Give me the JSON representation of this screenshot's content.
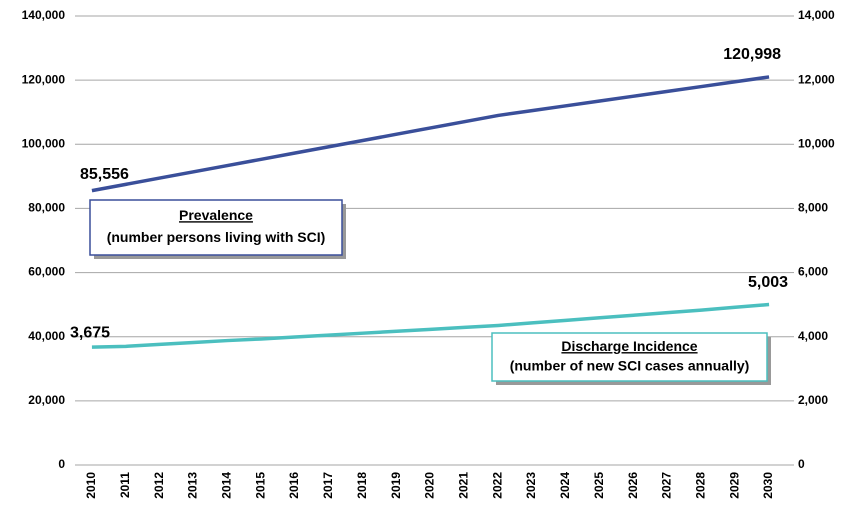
{
  "chart_data": {
    "type": "line",
    "categories": [
      "2010",
      "2011",
      "2012",
      "2013",
      "2014",
      "2015",
      "2016",
      "2017",
      "2018",
      "2019",
      "2020",
      "2021",
      "2022",
      "2023",
      "2024",
      "2025",
      "2026",
      "2027",
      "2028",
      "2029",
      "2030"
    ],
    "series": [
      {
        "name": "Prevalence",
        "color": "#3a4f9a",
        "axis": "y",
        "values": [
          85556,
          87510,
          89460,
          91420,
          93370,
          95320,
          97280,
          99230,
          101190,
          103140,
          105100,
          107050,
          109000,
          110500,
          112000,
          113500,
          115000,
          116500,
          118000,
          119500,
          120998
        ],
        "value_labels": [
          "85,556",
          null,
          null,
          null,
          null,
          null,
          null,
          null,
          null,
          null,
          null,
          null,
          null,
          null,
          null,
          null,
          null,
          null,
          null,
          null,
          "120,998"
        ]
      },
      {
        "name": "Discharge Incidence",
        "color": "#4bbfbf",
        "axis": "y2",
        "values": [
          3675,
          3700,
          3760,
          3820,
          3880,
          3930,
          3990,
          4050,
          4110,
          4170,
          4230,
          4290,
          4350,
          4430,
          4510,
          4590,
          4670,
          4750,
          4830,
          4920,
          5003
        ],
        "value_labels": [
          "3,675",
          null,
          null,
          null,
          null,
          null,
          null,
          null,
          null,
          null,
          null,
          null,
          null,
          null,
          null,
          null,
          null,
          null,
          null,
          null,
          "5,003"
        ]
      }
    ],
    "annotations": [
      {
        "title": "Prevalence",
        "text": "(number persons living with SCI)"
      },
      {
        "title": "Discharge Incidence",
        "text": "(number of new SCI cases annually)"
      }
    ],
    "ylim": [
      0,
      140000
    ],
    "yticks": [
      0,
      {
        "value": 20000,
        "label": "20,000"
      },
      {
        "value": 40000,
        "label": "40,000"
      },
      {
        "value": 60000,
        "label": "60,000"
      },
      {
        "value": 80000,
        "label": "80,000"
      },
      {
        "value": 100000,
        "label": "100,000"
      },
      {
        "value": 120000,
        "label": "120,000"
      },
      {
        "value": 140000,
        "label": "140,000"
      }
    ],
    "y2lim": [
      0,
      14000
    ],
    "y2ticks": [
      0,
      {
        "value": 2000,
        "label": "2,000"
      },
      {
        "value": 4000,
        "label": "4,000"
      },
      {
        "value": 6000,
        "label": "6,000"
      },
      {
        "value": 8000,
        "label": "8,000"
      },
      {
        "value": 10000,
        "label": "10,000"
      },
      {
        "value": 12000,
        "label": "12,000"
      },
      {
        "value": 14000,
        "label": "14,000"
      }
    ],
    "grid": true
  }
}
